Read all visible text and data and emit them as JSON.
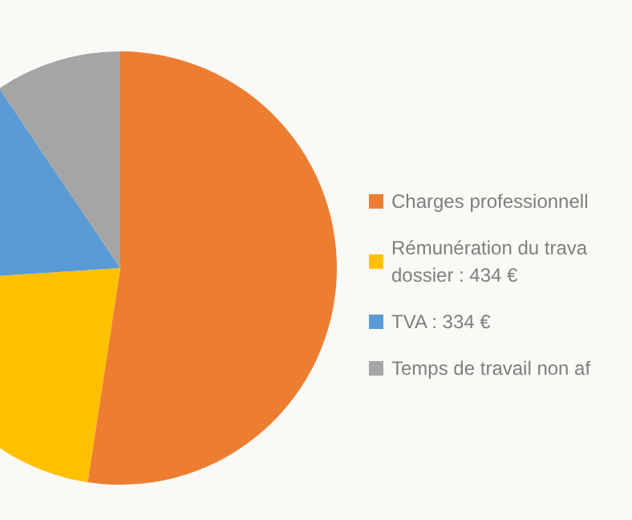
{
  "chart_data": {
    "type": "pie",
    "categories": [
      "Charges professionnell",
      "Rémunération du trava\ndossier : 434 €",
      "TVA : 334 €",
      "Temps de travail non af"
    ],
    "values": [
      1055,
      434,
      334,
      190
    ],
    "colors": [
      "#ed7d31",
      "#ffc000",
      "#5b9bd5",
      "#a5a5a5"
    ],
    "legend": "right"
  }
}
